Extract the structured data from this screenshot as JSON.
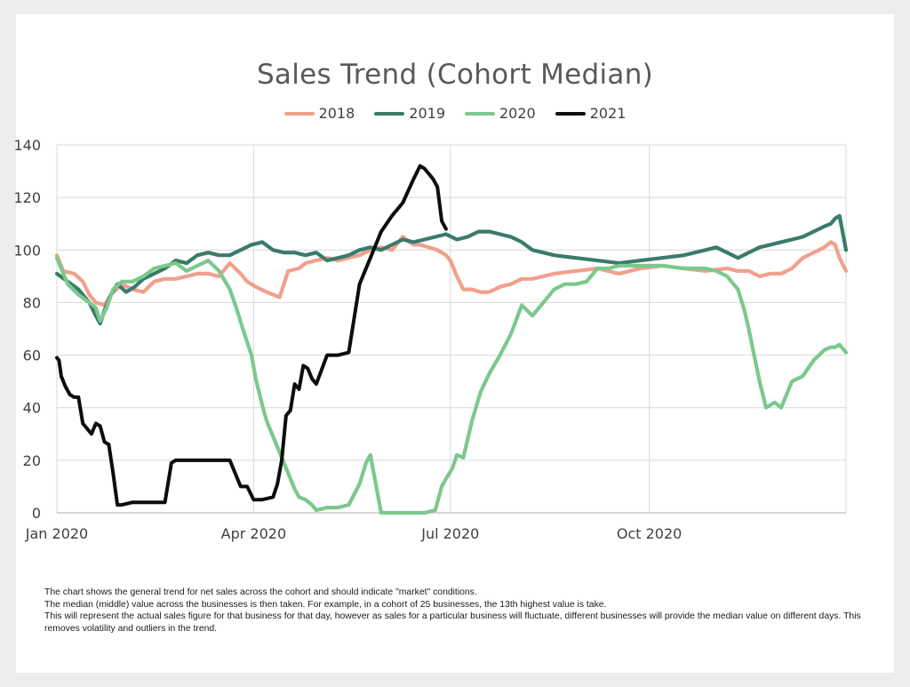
{
  "chart_data": {
    "type": "line",
    "title": "Sales Trend (Cohort Median)",
    "x_tick_labels": [
      "Jan 2020",
      "Apr 2020",
      "Jul 2020",
      "Oct 2020"
    ],
    "x_tick_days": [
      0,
      91,
      182,
      274
    ],
    "x_range_days": [
      0,
      365
    ],
    "ylim": [
      0,
      140
    ],
    "y_ticks": [
      0,
      20,
      40,
      60,
      80,
      100,
      120,
      140
    ],
    "grid": true,
    "legend_position": "top",
    "series": [
      {
        "name": "2018",
        "color": "#f0a08c",
        "x": [
          0,
          3,
          8,
          12,
          15,
          18,
          22,
          25,
          30,
          35,
          40,
          45,
          50,
          55,
          60,
          65,
          70,
          75,
          80,
          85,
          88,
          92,
          97,
          103,
          107,
          112,
          115,
          120,
          125,
          130,
          135,
          140,
          145,
          150,
          155,
          160,
          163,
          165,
          168,
          172,
          176,
          180,
          182,
          185,
          188,
          192,
          196,
          200,
          205,
          210,
          215,
          220,
          225,
          230,
          240,
          250,
          260,
          270,
          280,
          290,
          300,
          310,
          315,
          320,
          325,
          330,
          335,
          340,
          345,
          350,
          355,
          358,
          360,
          362,
          365
        ],
        "y": [
          98,
          92,
          91,
          88,
          83,
          80,
          79,
          83,
          87,
          85,
          84,
          88,
          89,
          89,
          90,
          91,
          91,
          90,
          95,
          91,
          88,
          86,
          84,
          82,
          92,
          93,
          95,
          96,
          97,
          96,
          97,
          98,
          100,
          101,
          100,
          105,
          103,
          102,
          102,
          101,
          100,
          98,
          96,
          90,
          85,
          85,
          84,
          84,
          86,
          87,
          89,
          89,
          90,
          91,
          92,
          93,
          91,
          93,
          94,
          93,
          92,
          93,
          92,
          92,
          90,
          91,
          91,
          93,
          97,
          99,
          101,
          103,
          102,
          97,
          92
        ]
      },
      {
        "name": "2019",
        "color": "#3a7b6a",
        "x": [
          0,
          5,
          10,
          15,
          18,
          20,
          22,
          25,
          28,
          32,
          36,
          40,
          45,
          50,
          55,
          60,
          65,
          70,
          75,
          80,
          85,
          90,
          95,
          100,
          105,
          110,
          115,
          120,
          125,
          130,
          135,
          140,
          145,
          150,
          155,
          160,
          165,
          170,
          175,
          180,
          185,
          190,
          195,
          200,
          205,
          210,
          215,
          220,
          225,
          230,
          240,
          250,
          260,
          270,
          280,
          290,
          300,
          305,
          310,
          315,
          320,
          325,
          330,
          335,
          340,
          345,
          350,
          355,
          358,
          360,
          362,
          365
        ],
        "y": [
          91,
          88,
          85,
          80,
          75,
          72,
          77,
          83,
          87,
          84,
          86,
          89,
          91,
          93,
          96,
          95,
          98,
          99,
          98,
          98,
          100,
          102,
          103,
          100,
          99,
          99,
          98,
          99,
          96,
          97,
          98,
          100,
          101,
          100,
          102,
          104,
          103,
          104,
          105,
          106,
          104,
          105,
          107,
          107,
          106,
          105,
          103,
          100,
          99,
          98,
          97,
          96,
          95,
          96,
          97,
          98,
          100,
          101,
          99,
          97,
          99,
          101,
          102,
          103,
          104,
          105,
          107,
          109,
          110,
          112,
          113,
          100
        ]
      },
      {
        "name": "2020",
        "color": "#7cc88e",
        "x": [
          0,
          5,
          10,
          15,
          18,
          20,
          23,
          26,
          30,
          35,
          40,
          45,
          50,
          55,
          60,
          65,
          70,
          75,
          80,
          83,
          86,
          90,
          92,
          95,
          97,
          100,
          102,
          105,
          108,
          110,
          112,
          115,
          118,
          120,
          125,
          130,
          135,
          140,
          143,
          145,
          150,
          155,
          160,
          165,
          170,
          175,
          178,
          180,
          183,
          185,
          188,
          192,
          196,
          200,
          205,
          210,
          215,
          220,
          225,
          230,
          235,
          240,
          245,
          250,
          255,
          260,
          265,
          270,
          275,
          280,
          290,
          300,
          305,
          310,
          315,
          318,
          320,
          322,
          325,
          328,
          332,
          335,
          340,
          345,
          350,
          355,
          358,
          360,
          362,
          365
        ],
        "y": [
          97,
          87,
          83,
          80,
          78,
          73,
          78,
          85,
          88,
          88,
          90,
          93,
          94,
          95,
          92,
          94,
          96,
          92,
          85,
          78,
          70,
          60,
          51,
          41,
          35,
          29,
          25,
          19,
          13,
          9,
          6,
          5,
          3,
          1,
          2,
          2,
          3,
          11,
          19,
          22,
          0,
          0,
          0,
          0,
          0,
          1,
          10,
          13,
          17,
          22,
          21,
          35,
          46,
          53,
          60,
          68,
          79,
          75,
          80,
          85,
          87,
          87,
          88,
          93,
          93,
          94,
          94,
          94,
          94,
          94,
          93,
          93,
          92,
          90,
          85,
          77,
          70,
          62,
          50,
          40,
          42,
          40,
          50,
          52,
          58,
          62,
          63,
          63,
          64,
          61
        ]
      },
      {
        "name": "2021",
        "color": "#0d0d0d",
        "x": [
          0,
          1,
          2,
          4,
          6,
          8,
          10,
          12,
          14,
          16,
          18,
          20,
          22,
          24,
          26,
          28,
          30,
          35,
          40,
          45,
          50,
          53,
          55,
          58,
          62,
          66,
          70,
          75,
          80,
          85,
          88,
          91,
          95,
          100,
          102,
          104,
          106,
          108,
          110,
          112,
          114,
          116,
          118,
          120,
          125,
          130,
          135,
          140,
          145,
          150,
          155,
          160,
          165,
          168,
          170,
          172,
          174,
          176,
          178,
          180
        ],
        "y": [
          59,
          58,
          52,
          48,
          45,
          44,
          44,
          34,
          32,
          30,
          34,
          33,
          27,
          26,
          15,
          3,
          3,
          4,
          4,
          4,
          4,
          19,
          20,
          20,
          20,
          20,
          20,
          20,
          20,
          10,
          10,
          5,
          5,
          6,
          11,
          20,
          37,
          39,
          49,
          47,
          56,
          55,
          51,
          49,
          60,
          60,
          61,
          87,
          97,
          107,
          113,
          118,
          127,
          132,
          131,
          129,
          127,
          124,
          111,
          108
        ]
      }
    ]
  },
  "notes": [
    "The chart shows the general trend for net sales across the cohort and should indicate \"market\" conditions.",
    "The median (middle) value across the businesses is then taken. For example, in a cohort of 25 businesses, the 13th highest value is take.",
    "This will represent the actual sales figure for that business for that day, however as sales for a particular business will fluctuate, different businesses will provide the median value on different days. This removes volatility and outliers in the trend."
  ]
}
